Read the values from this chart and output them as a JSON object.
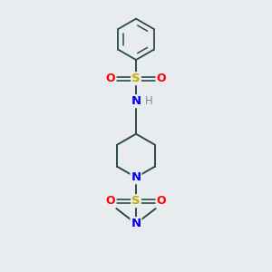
{
  "background_color": "#e8ecee",
  "atom_colors": {
    "C": "#1a3a3a",
    "N": "#0000ee",
    "O": "#ff0000",
    "S": "#ccaa00",
    "H": "#888888"
  },
  "bond_color": "#2a4a4a",
  "figsize": [
    3.0,
    3.0
  ],
  "dpi": 100,
  "xlim": [
    0,
    6
  ],
  "ylim": [
    0,
    9
  ]
}
